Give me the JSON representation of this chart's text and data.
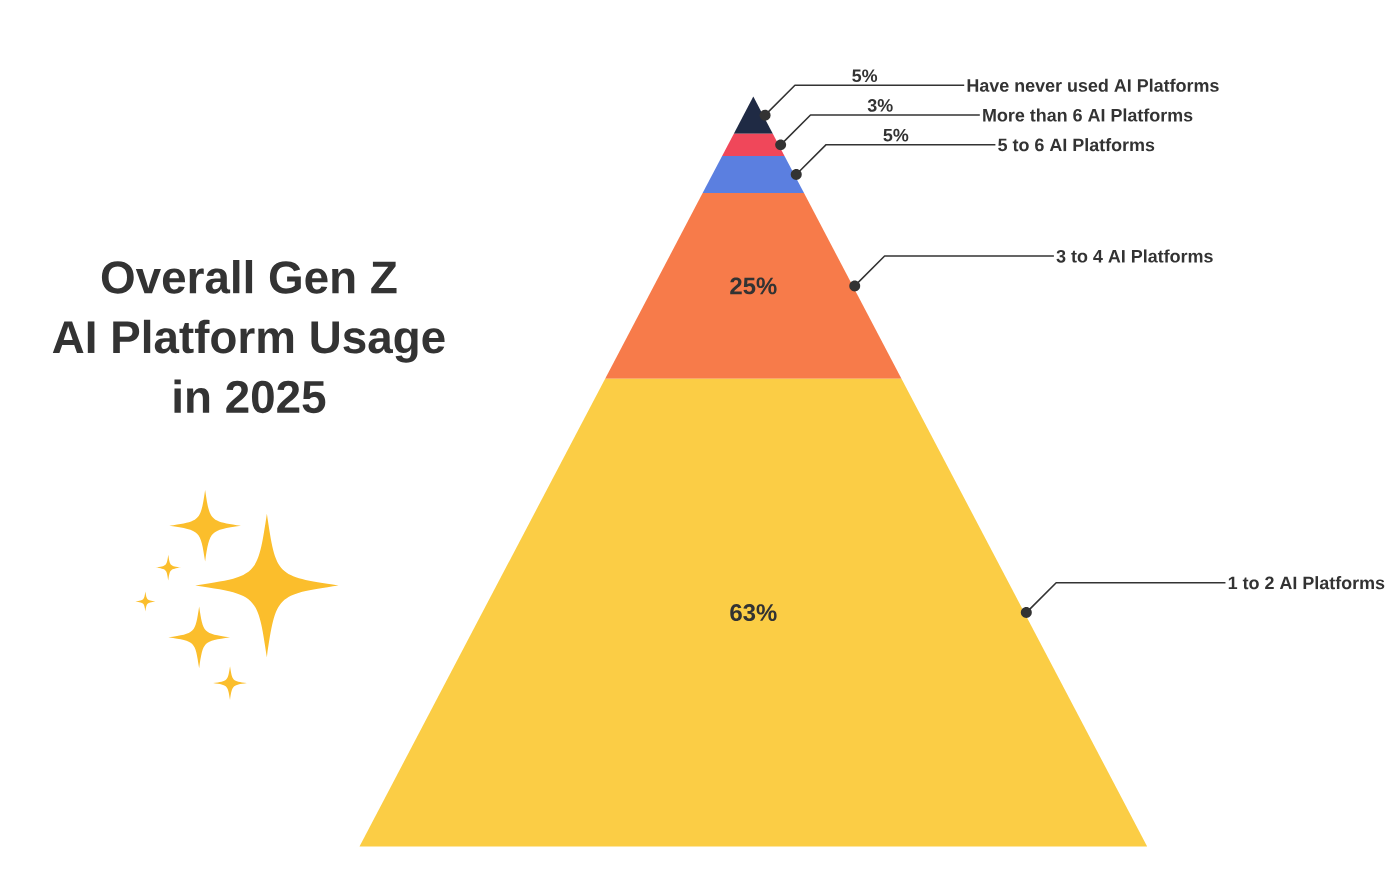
{
  "chart_data": {
    "type": "other",
    "title": "Overall Gen Z\nAI Platform Usage\nin 2025",
    "categories": [
      "Have never used AI Platforms",
      "More than 6 AI Platforms",
      "5 to 6 AI Platforms",
      "3 to 4 AI Platforms",
      "1 to 2 AI Platforms"
    ],
    "values": [
      5,
      3,
      5,
      25,
      63
    ],
    "value_labels": [
      "5%",
      "3%",
      "5%",
      "25%",
      "63%"
    ],
    "colors": [
      "#1f2a44",
      "#f0475a",
      "#5b7fe0",
      "#f77b4a",
      "#fbcd45"
    ]
  }
}
